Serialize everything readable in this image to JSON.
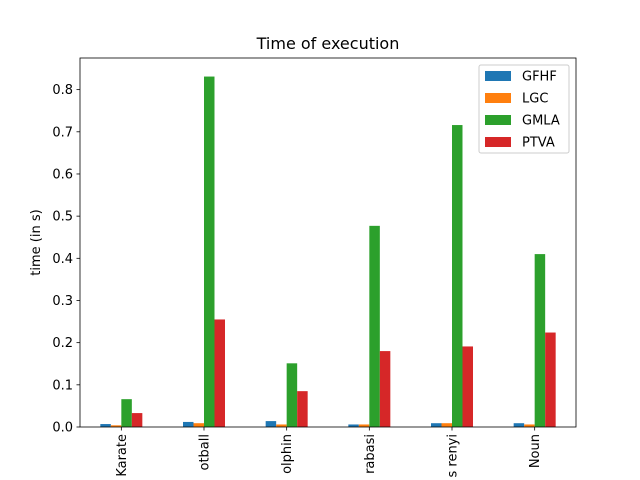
{
  "chart_data": {
    "type": "bar",
    "title": "Time of execution",
    "xlabel": "",
    "ylabel": "time (in s)",
    "ylim": [
      0,
      0.875
    ],
    "yticks": [
      0.0,
      0.1,
      0.2,
      0.3,
      0.4,
      0.5,
      0.6,
      0.7,
      0.8
    ],
    "ytick_labels": [
      "0.0",
      "0.1",
      "0.2",
      "0.3",
      "0.4",
      "0.5",
      "0.6",
      "0.7",
      "0.8"
    ],
    "categories": [
      "Karate",
      "otball",
      "olphin",
      "rabasi",
      "s renyi",
      "Noun"
    ],
    "legend_position": "top-right",
    "grid": false,
    "series": [
      {
        "name": "GFHF",
        "color": "#1f77b4",
        "values": [
          0.007,
          0.012,
          0.014,
          0.006,
          0.009,
          0.009
        ]
      },
      {
        "name": "LGC",
        "color": "#ff7f0e",
        "values": [
          0.004,
          0.009,
          0.006,
          0.006,
          0.009,
          0.006
        ]
      },
      {
        "name": "GMLA",
        "color": "#2ca02c",
        "values": [
          0.066,
          0.831,
          0.151,
          0.477,
          0.716,
          0.41
        ]
      },
      {
        "name": "PTVA",
        "color": "#d62728",
        "values": [
          0.033,
          0.255,
          0.085,
          0.18,
          0.191,
          0.224
        ]
      }
    ]
  }
}
